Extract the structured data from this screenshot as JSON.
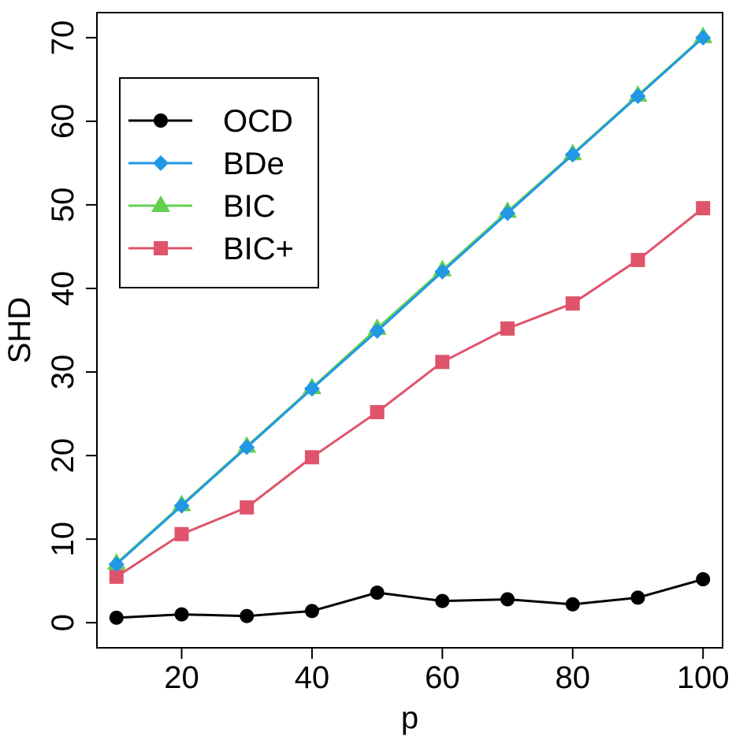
{
  "chart_data": {
    "type": "line",
    "title": "",
    "xlabel": "p",
    "ylabel": "SHD",
    "x": [
      10,
      20,
      30,
      40,
      50,
      60,
      70,
      80,
      90,
      100
    ],
    "xlim": [
      7,
      103
    ],
    "ylim": [
      -3,
      73
    ],
    "xticks": [
      20,
      40,
      60,
      80,
      100
    ],
    "yticks": [
      0,
      10,
      20,
      30,
      40,
      50,
      60,
      70
    ],
    "grid": false,
    "legend_position": "top-left",
    "series": [
      {
        "name": "OCD",
        "color": "#000000",
        "marker": "circle",
        "values": [
          0.6,
          1.0,
          0.8,
          1.4,
          3.6,
          2.6,
          2.8,
          2.2,
          3.0,
          5.2
        ]
      },
      {
        "name": "BDe",
        "color": "#2297E6",
        "marker": "diamond",
        "values": [
          7,
          14,
          21,
          28,
          34.9,
          42,
          49,
          56,
          63,
          70
        ]
      },
      {
        "name": "BIC",
        "color": "#61D04F",
        "marker": "triangle",
        "values": [
          7.1,
          14.1,
          21.1,
          28.1,
          35.2,
          42.2,
          49.2,
          56.1,
          63.1,
          70.1
        ]
      },
      {
        "name": "BIC+",
        "color": "#DF536B",
        "marker": "square",
        "values": [
          5.5,
          10.6,
          13.8,
          19.8,
          25.2,
          31.2,
          35.2,
          38.2,
          43.4,
          49.6
        ]
      }
    ]
  }
}
